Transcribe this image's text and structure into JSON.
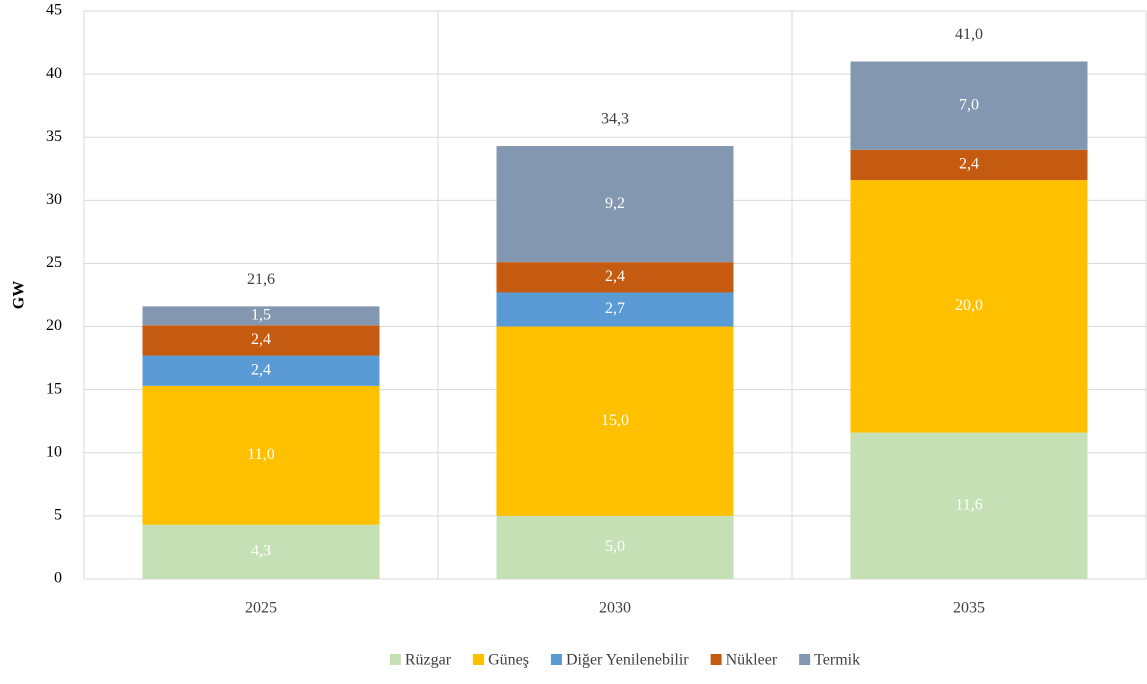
{
  "chart_data": {
    "type": "stacked-bar",
    "y_label": "GW",
    "categories": [
      "2025",
      "2030",
      "2035"
    ],
    "series": [
      {
        "name": "Rüzgar",
        "color": "#c5e0b4",
        "values": [
          4.3,
          5.0,
          11.6
        ],
        "value_labels": [
          "4,3",
          "5,0",
          "11,6"
        ]
      },
      {
        "name": "Güneş",
        "color": "#ffc000",
        "values": [
          11.0,
          15.0,
          20.0
        ],
        "value_labels": [
          "11,0",
          "15,0",
          "20,0"
        ]
      },
      {
        "name": "Diğer Yenilenebilir",
        "color": "#5b9bd5",
        "values": [
          2.4,
          2.7,
          null
        ],
        "value_labels": [
          "2,4",
          "2,7",
          null
        ]
      },
      {
        "name": "Nükleer",
        "color": "#c55a11",
        "values": [
          2.4,
          2.4,
          2.4
        ],
        "value_labels": [
          "2,4",
          "2,4",
          "2,4"
        ]
      },
      {
        "name": "Termik",
        "color": "#8497b0",
        "values": [
          1.5,
          9.2,
          7.0
        ],
        "value_labels": [
          "1,5",
          "9,2",
          "7,0"
        ]
      }
    ],
    "totals": [
      21.6,
      34.3,
      41.0
    ],
    "total_labels": [
      "21,6",
      "34,3",
      "41,0"
    ],
    "ylim": [
      0,
      45
    ],
    "yticks": [
      0,
      5,
      10,
      15,
      20,
      25,
      30,
      35,
      40,
      45
    ],
    "grid": true,
    "legend": "bottom"
  }
}
